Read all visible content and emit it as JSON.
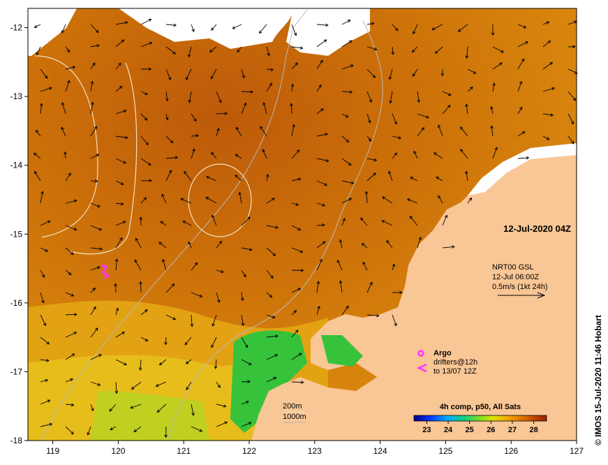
{
  "date_label": "12-Jul-2020 04Z",
  "currents": {
    "line1": "NRT00 GSL",
    "line2": "12-Jul 06:00Z",
    "line3": "0.5m/s (1kt 24h)"
  },
  "argo": {
    "title": "Argo",
    "line1": "drifters@12h",
    "line2": "to 13/07 12Z"
  },
  "isobaths": {
    "line1": "200m",
    "line2": "1000m"
  },
  "colorbar": {
    "title": "4h comp, p50, All Sats",
    "ticks": [
      "23",
      "24",
      "25",
      "26",
      "27",
      "28"
    ],
    "min": 22.4,
    "max": 28.6
  },
  "credit": "© IMOS 15-Jul-2020 11:46 Hobart",
  "axes": {
    "x_ticks": [
      "119",
      "120",
      "121",
      "122",
      "123",
      "124",
      "125",
      "126",
      "127"
    ],
    "y_ticks": [
      "-12",
      "-13",
      "-14",
      "-15",
      "-16",
      "-17",
      "-18"
    ],
    "x_range": [
      118.62,
      127
    ],
    "y_range": [
      -18,
      -11.72
    ]
  },
  "colors": {
    "land": "#f9c695",
    "sst_warm": "#c65a05",
    "sst_mid": "#dd8a0e",
    "sst_cool": "#e9b21a",
    "sst_green": "#36c23a",
    "argo": "#ff33ff"
  }
}
